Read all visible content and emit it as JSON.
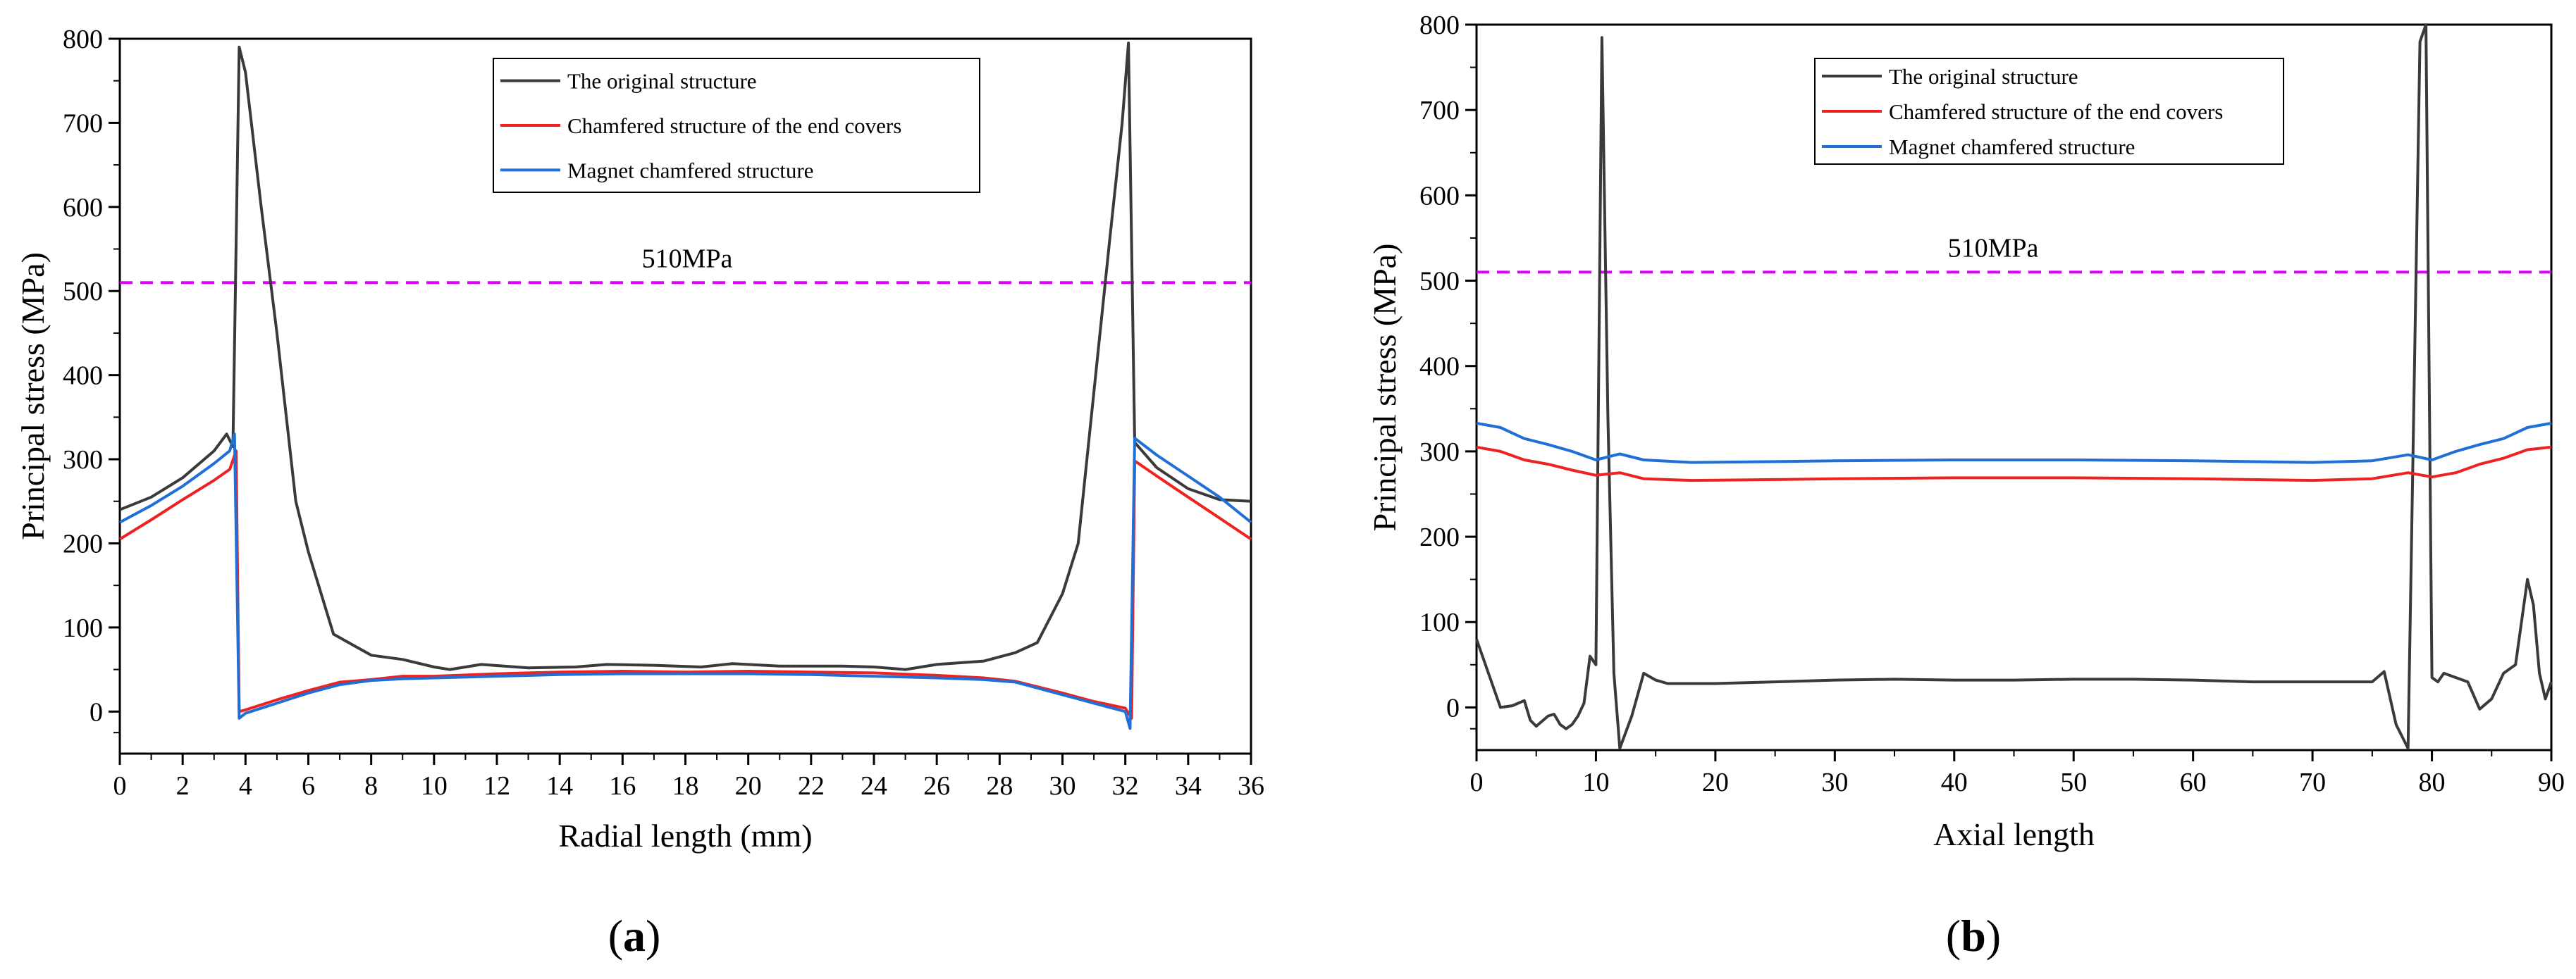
{
  "chart_data": [
    {
      "type": "line",
      "panel_label": "(a)",
      "panel_open": "(",
      "panel_letter": "a",
      "panel_close": ")",
      "xlabel": "Radial length (mm)",
      "ylabel": "Principal stress (MPa)",
      "xlim": [
        0,
        36
      ],
      "ylim": [
        -50,
        800
      ],
      "xticks": [
        0,
        2,
        4,
        6,
        8,
        10,
        12,
        14,
        16,
        18,
        20,
        22,
        24,
        26,
        28,
        30,
        32,
        34,
        36
      ],
      "yticks": [
        0,
        100,
        200,
        300,
        400,
        500,
        600,
        700,
        800
      ],
      "legend_position": "top-center",
      "threshold": {
        "value": 510,
        "label": "510MPa",
        "color": "#e000ff"
      },
      "series": [
        {
          "name": "The original structure",
          "color": "#3a3a3a",
          "points": [
            [
              0,
              240
            ],
            [
              1,
              255
            ],
            [
              2,
              278
            ],
            [
              3,
              310
            ],
            [
              3.4,
              330
            ],
            [
              3.6,
              315
            ],
            [
              3.8,
              790
            ],
            [
              4.0,
              760
            ],
            [
              4.5,
              600
            ],
            [
              5.0,
              450
            ],
            [
              5.6,
              250
            ],
            [
              6.0,
              190
            ],
            [
              6.8,
              92
            ],
            [
              8,
              67
            ],
            [
              9,
              62
            ],
            [
              10,
              53
            ],
            [
              10.5,
              50
            ],
            [
              11.5,
              56
            ],
            [
              13,
              52
            ],
            [
              14.5,
              53
            ],
            [
              15.5,
              56
            ],
            [
              17,
              55
            ],
            [
              18.5,
              53
            ],
            [
              19.5,
              57
            ],
            [
              21,
              54
            ],
            [
              23,
              54
            ],
            [
              24,
              53
            ],
            [
              25,
              50
            ],
            [
              26,
              56
            ],
            [
              27.5,
              60
            ],
            [
              28.5,
              70
            ],
            [
              29.2,
              82
            ],
            [
              30,
              140
            ],
            [
              30.5,
              200
            ],
            [
              31,
              380
            ],
            [
              31.5,
              560
            ],
            [
              31.9,
              700
            ],
            [
              32.1,
              795
            ],
            [
              32.3,
              320
            ],
            [
              33,
              290
            ],
            [
              34,
              265
            ],
            [
              35,
              252
            ],
            [
              36,
              250
            ]
          ]
        },
        {
          "name": "Chamfered structure of the end covers",
          "color": "#ee2222",
          "points": [
            [
              0,
              205
            ],
            [
              1,
              228
            ],
            [
              2,
              252
            ],
            [
              3,
              275
            ],
            [
              3.5,
              288
            ],
            [
              3.7,
              310
            ],
            [
              3.8,
              0
            ],
            [
              4.0,
              2
            ],
            [
              5,
              14
            ],
            [
              6,
              25
            ],
            [
              7,
              35
            ],
            [
              8,
              38
            ],
            [
              9,
              42
            ],
            [
              10,
              42
            ],
            [
              12,
              45
            ],
            [
              14,
              47
            ],
            [
              16,
              48
            ],
            [
              18,
              47
            ],
            [
              20,
              48
            ],
            [
              22,
              47
            ],
            [
              24,
              46
            ],
            [
              26,
              43
            ],
            [
              27.5,
              40
            ],
            [
              28.5,
              36
            ],
            [
              30,
              22
            ],
            [
              31,
              12
            ],
            [
              32,
              4
            ],
            [
              32.2,
              -8
            ],
            [
              32.3,
              298
            ],
            [
              33,
              280
            ],
            [
              34,
              255
            ],
            [
              35,
              230
            ],
            [
              36,
              205
            ]
          ]
        },
        {
          "name": "Magnet chamfered structure",
          "color": "#1f6fd6",
          "points": [
            [
              0,
              225
            ],
            [
              1,
              245
            ],
            [
              2,
              268
            ],
            [
              3,
              295
            ],
            [
              3.5,
              310
            ],
            [
              3.65,
              330
            ],
            [
              3.8,
              -8
            ],
            [
              4.0,
              -2
            ],
            [
              5,
              10
            ],
            [
              6,
              22
            ],
            [
              7,
              32
            ],
            [
              8,
              37
            ],
            [
              9,
              39
            ],
            [
              10,
              40
            ],
            [
              12,
              42
            ],
            [
              14,
              44
            ],
            [
              16,
              45
            ],
            [
              18,
              45
            ],
            [
              20,
              45
            ],
            [
              22,
              44
            ],
            [
              24,
              42
            ],
            [
              26,
              40
            ],
            [
              27.5,
              38
            ],
            [
              28.5,
              35
            ],
            [
              30,
              20
            ],
            [
              31,
              10
            ],
            [
              32,
              0
            ],
            [
              32.15,
              -20
            ],
            [
              32.3,
              325
            ],
            [
              33,
              305
            ],
            [
              34,
              280
            ],
            [
              35,
              255
            ],
            [
              36,
              225
            ]
          ]
        }
      ]
    },
    {
      "type": "line",
      "panel_label": "(b)",
      "panel_open": "(",
      "panel_letter": "b",
      "panel_close": ")",
      "xlabel": "Axial length",
      "ylabel": "Principal stress (MPa)",
      "xlim": [
        0,
        90
      ],
      "ylim": [
        -50,
        800
      ],
      "xticks": [
        0,
        10,
        20,
        30,
        40,
        50,
        60,
        70,
        80,
        90
      ],
      "yticks": [
        0,
        100,
        200,
        300,
        400,
        500,
        600,
        700,
        800
      ],
      "legend_position": "top-center",
      "threshold": {
        "value": 510,
        "label": "510MPa",
        "color": "#e000ff"
      },
      "series": [
        {
          "name": "The original structure",
          "color": "#3a3a3a",
          "points": [
            [
              0,
              80
            ],
            [
              1,
              40
            ],
            [
              2,
              0
            ],
            [
              3,
              2
            ],
            [
              4,
              8
            ],
            [
              4.5,
              -15
            ],
            [
              5,
              -22
            ],
            [
              6,
              -10
            ],
            [
              6.5,
              -8
            ],
            [
              7,
              -20
            ],
            [
              7.5,
              -25
            ],
            [
              8,
              -20
            ],
            [
              8.5,
              -10
            ],
            [
              9,
              5
            ],
            [
              9.5,
              60
            ],
            [
              10,
              50
            ],
            [
              10.5,
              785
            ],
            [
              11,
              340
            ],
            [
              11.5,
              40
            ],
            [
              12,
              -48
            ],
            [
              13,
              -10
            ],
            [
              14,
              40
            ],
            [
              15,
              32
            ],
            [
              16,
              28
            ],
            [
              18,
              28
            ],
            [
              20,
              28
            ],
            [
              25,
              30
            ],
            [
              30,
              32
            ],
            [
              35,
              33
            ],
            [
              40,
              32
            ],
            [
              45,
              32
            ],
            [
              50,
              33
            ],
            [
              55,
              33
            ],
            [
              60,
              32
            ],
            [
              65,
              30
            ],
            [
              70,
              30
            ],
            [
              75,
              30
            ],
            [
              76,
              42
            ],
            [
              77,
              -20
            ],
            [
              78,
              -48
            ],
            [
              79,
              780
            ],
            [
              79.5,
              800
            ],
            [
              80,
              35
            ],
            [
              80.5,
              30
            ],
            [
              81,
              40
            ],
            [
              82,
              35
            ],
            [
              83,
              30
            ],
            [
              84,
              -2
            ],
            [
              85,
              10
            ],
            [
              86,
              40
            ],
            [
              87,
              50
            ],
            [
              88,
              150
            ],
            [
              88.5,
              120
            ],
            [
              89,
              40
            ],
            [
              89.5,
              10
            ],
            [
              90,
              30
            ]
          ]
        },
        {
          "name": "Chamfered structure of the end covers",
          "color": "#ee2222",
          "points": [
            [
              0,
              305
            ],
            [
              2,
              300
            ],
            [
              4,
              290
            ],
            [
              6,
              285
            ],
            [
              8,
              278
            ],
            [
              10,
              272
            ],
            [
              12,
              275
            ],
            [
              14,
              268
            ],
            [
              18,
              266
            ],
            [
              25,
              267
            ],
            [
              30,
              268
            ],
            [
              40,
              269
            ],
            [
              50,
              269
            ],
            [
              60,
              268
            ],
            [
              70,
              266
            ],
            [
              75,
              268
            ],
            [
              78,
              275
            ],
            [
              80,
              270
            ],
            [
              82,
              275
            ],
            [
              84,
              285
            ],
            [
              86,
              292
            ],
            [
              88,
              302
            ],
            [
              90,
              305
            ]
          ]
        },
        {
          "name": "Magnet chamfered structure",
          "color": "#1f6fd6",
          "points": [
            [
              0,
              333
            ],
            [
              2,
              328
            ],
            [
              4,
              315
            ],
            [
              6,
              308
            ],
            [
              8,
              300
            ],
            [
              10,
              290
            ],
            [
              12,
              297
            ],
            [
              14,
              290
            ],
            [
              18,
              287
            ],
            [
              25,
              288
            ],
            [
              30,
              289
            ],
            [
              40,
              290
            ],
            [
              50,
              290
            ],
            [
              60,
              289
            ],
            [
              70,
              287
            ],
            [
              75,
              289
            ],
            [
              78,
              296
            ],
            [
              80,
              290
            ],
            [
              82,
              300
            ],
            [
              84,
              308
            ],
            [
              86,
              315
            ],
            [
              88,
              328
            ],
            [
              90,
              333
            ]
          ]
        }
      ]
    }
  ]
}
